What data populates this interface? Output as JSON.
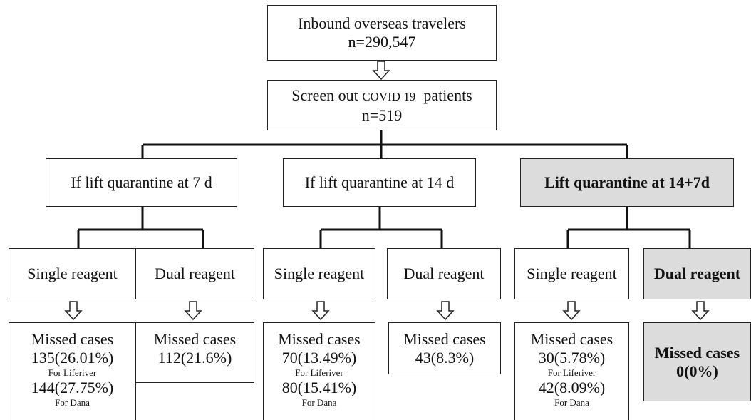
{
  "root": {
    "lines": [
      "Inbound overseas travelers",
      "n=290,547"
    ]
  },
  "screen": {
    "parts": [
      "Screen out",
      "COVID 19",
      "patients"
    ],
    "n": "n=519"
  },
  "branches": [
    {
      "label": "If lift quarantine at 7 d",
      "options": [
        {
          "label": "Single reagent",
          "result": [
            "Missed cases",
            "135(26.01%)",
            "For Liferiver",
            "144(27.75%)",
            "For Dana"
          ]
        },
        {
          "label": "Dual reagent",
          "result": [
            "Missed cases",
            "112(21.6%)"
          ]
        }
      ]
    },
    {
      "label": "If lift quarantine at 14 d",
      "options": [
        {
          "label": "Single reagent",
          "result": [
            "Missed cases",
            "70(13.49%)",
            "For Liferiver",
            "80(15.41%)",
            "For Dana"
          ]
        },
        {
          "label": "Dual reagent",
          "result": [
            "Missed cases",
            "43(8.3%)"
          ]
        }
      ]
    },
    {
      "label": "Lift quarantine at 14+7d",
      "options": [
        {
          "label": "Single reagent",
          "result": [
            "Missed cases",
            "30(5.78%)",
            "For Liferiver",
            "42(8.09%)",
            "For Dana"
          ]
        },
        {
          "label": "Dual reagent",
          "result": [
            "Missed cases",
            "0(0%)"
          ]
        }
      ]
    }
  ]
}
